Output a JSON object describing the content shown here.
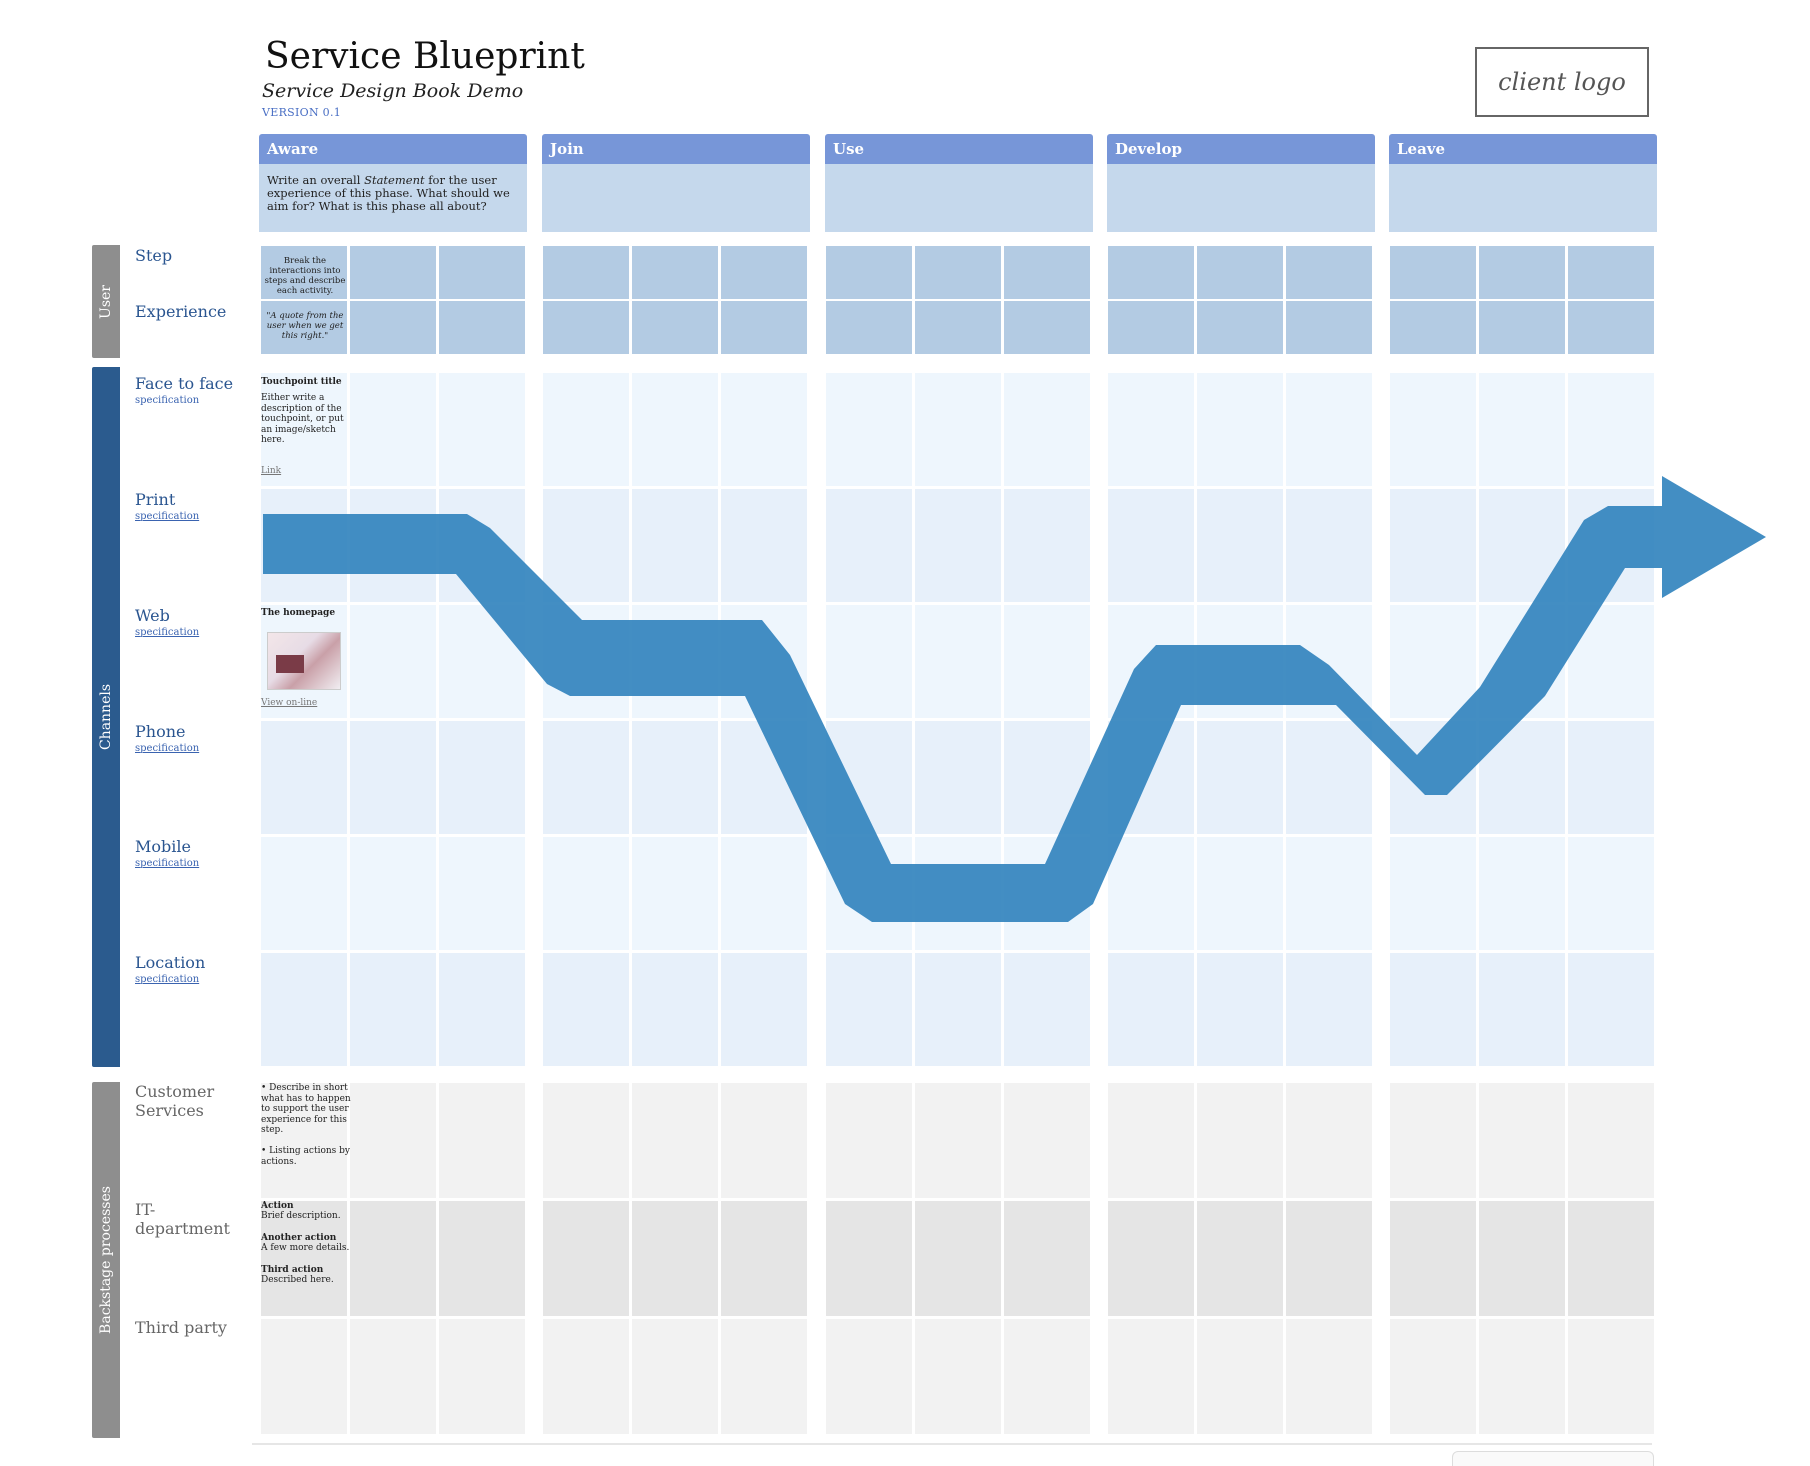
{
  "header": {
    "title": "Service Blueprint",
    "subtitle": "Service Design Book Demo",
    "version": "VERSION 0.1",
    "client_logo": "client logo"
  },
  "phases": [
    {
      "name": "Aware",
      "statement_before": "Write an overall ",
      "statement_em": "Statement",
      "statement_after": " for the user experience of this phase. What should we aim for? What is this phase all about?"
    },
    {
      "name": "Join",
      "statement_before": "",
      "statement_em": "",
      "statement_after": ""
    },
    {
      "name": "Use",
      "statement_before": "",
      "statement_em": "",
      "statement_after": ""
    },
    {
      "name": "Develop",
      "statement_before": "",
      "statement_em": "",
      "statement_after": ""
    },
    {
      "name": "Leave",
      "statement_before": "",
      "statement_em": "",
      "statement_after": ""
    }
  ],
  "groups": {
    "user": "User",
    "channels": "Channels",
    "backstage": "Backstage processes"
  },
  "rows": {
    "step": {
      "label": "Step",
      "sample": "Break the interactions into steps and describe each activity."
    },
    "experience": {
      "label": "Experience",
      "sample": "\"A quote from the user when we get this right.\""
    },
    "face_to_face": {
      "label": "Face to face",
      "spec": "specification",
      "sample_title": "Touchpoint title",
      "sample_text": "Either write a description of the touchpoint, or put an image/sketch here.",
      "sample_link": "Link"
    },
    "print": {
      "label": "Print",
      "spec": "specification"
    },
    "web": {
      "label": "Web",
      "spec": "specification",
      "sample_title": "The homepage",
      "sample_link": "View on-line"
    },
    "phone": {
      "label": "Phone",
      "spec": "specification"
    },
    "mobile": {
      "label": "Mobile",
      "spec": "specification"
    },
    "location": {
      "label": "Location",
      "spec": "specification"
    },
    "customer_services": {
      "label": "Customer Services",
      "bullet1": "• Describe in short what has to happen to support the user experience for this step.",
      "bullet2": "• Listing actions by actions."
    },
    "it_department": {
      "label": "IT-department",
      "a1_title": "Action",
      "a1_text": "Brief description.",
      "a2_title": "Another  action",
      "a2_text": "A few more details.",
      "a3_title": "Third action",
      "a3_text": "Described here."
    },
    "third_party": {
      "label": "Third party"
    }
  },
  "colors": {
    "phase_header": "#7796d8",
    "phase_statement": "#c5d8ec",
    "user_cells": "#b3cbe3",
    "channel_light": "#eef6fd",
    "channel_dark": "#e7f0fa",
    "backstage_light": "#f2f2f2",
    "backstage_dark": "#e5e5e5",
    "channels_band": "#2b5b8e",
    "grey_band": "#8e8e8e",
    "journey_arrow": "#2f82bd"
  }
}
